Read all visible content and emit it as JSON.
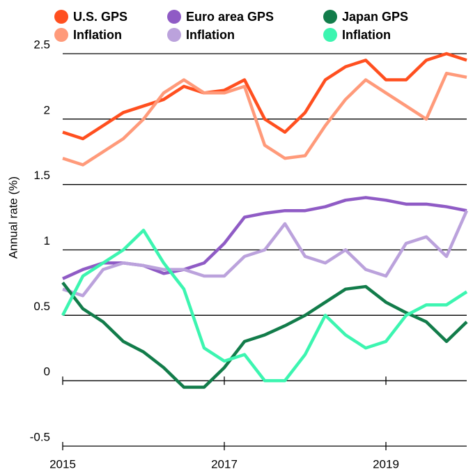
{
  "chart_data": {
    "type": "line",
    "y_label": "Annual rate (%)",
    "x": [
      2015,
      2015.25,
      2015.5,
      2015.75,
      2016,
      2016.25,
      2016.5,
      2016.75,
      2017,
      2017.25,
      2017.5,
      2017.75,
      2018,
      2018.25,
      2018.5,
      2018.75,
      2019,
      2019.25,
      2019.5,
      2019.75,
      2020
    ],
    "xlim": [
      2015,
      2020
    ],
    "xticks": [
      2015,
      2017,
      2019
    ],
    "ylim": [
      -0.5,
      2.5
    ],
    "yticks": [
      -0.5,
      0,
      0.5,
      1,
      1.5,
      2,
      2.5
    ],
    "grid": true,
    "series": [
      {
        "name": "U.S. GPS",
        "color": "#ff4f1f",
        "values": [
          1.9,
          1.85,
          1.95,
          2.05,
          2.1,
          2.15,
          2.25,
          2.2,
          2.22,
          2.3,
          2.0,
          1.9,
          2.05,
          2.3,
          2.4,
          2.45,
          2.3,
          2.3,
          2.45,
          2.5,
          2.45
        ]
      },
      {
        "name": "Inflation",
        "color": "#ff9a7a",
        "values": [
          1.7,
          1.65,
          1.75,
          1.85,
          2.0,
          2.2,
          2.3,
          2.2,
          2.2,
          2.25,
          1.8,
          1.7,
          1.72,
          1.95,
          2.15,
          2.3,
          2.2,
          2.1,
          2.0,
          2.35,
          2.32
        ]
      },
      {
        "name": "Euro area GPS",
        "color": "#8f5bc5",
        "values": [
          0.78,
          0.85,
          0.9,
          0.9,
          0.88,
          0.82,
          0.85,
          0.9,
          1.05,
          1.25,
          1.28,
          1.3,
          1.3,
          1.33,
          1.38,
          1.4,
          1.38,
          1.35,
          1.35,
          1.33,
          1.3
        ]
      },
      {
        "name": "Inflation",
        "color": "#bba2dc",
        "values": [
          0.7,
          0.65,
          0.85,
          0.9,
          0.88,
          0.85,
          0.85,
          0.8,
          0.8,
          0.95,
          1.0,
          1.2,
          0.95,
          0.9,
          1.0,
          0.85,
          0.8,
          1.05,
          1.1,
          0.95,
          1.3
        ]
      },
      {
        "name": "Japan GPS",
        "color": "#127c4a",
        "values": [
          0.75,
          0.55,
          0.45,
          0.3,
          0.22,
          0.1,
          -0.05,
          -0.05,
          0.1,
          0.3,
          0.35,
          0.42,
          0.5,
          0.6,
          0.7,
          0.72,
          0.6,
          0.52,
          0.45,
          0.3,
          0.45
        ]
      },
      {
        "name": "Inflation",
        "color": "#3cf5b0",
        "values": [
          0.5,
          0.8,
          0.9,
          1.0,
          1.15,
          0.9,
          0.7,
          0.25,
          0.15,
          0.2,
          0.0,
          0.0,
          0.2,
          0.5,
          0.35,
          0.25,
          0.3,
          0.5,
          0.58,
          0.58,
          0.68
        ]
      }
    ]
  }
}
